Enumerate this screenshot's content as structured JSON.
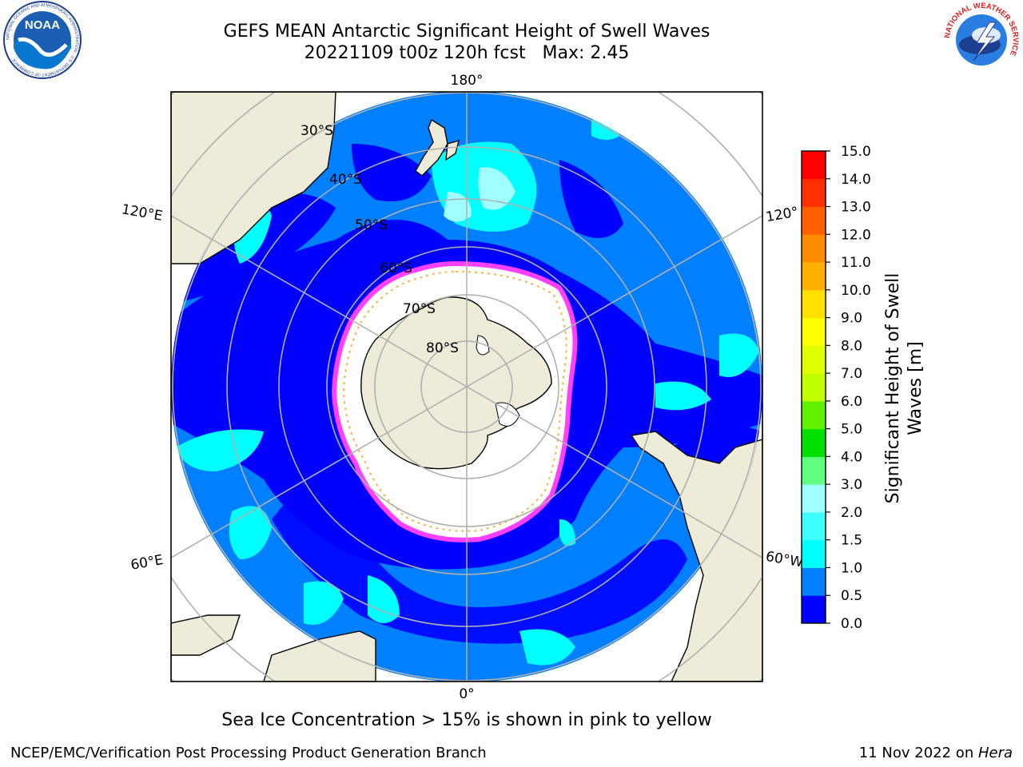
{
  "title": {
    "line1": "GEFS MEAN Antarctic Significant Height of Swell Waves",
    "line2": "20221109 t00z 120h fcst   Max: 2.45"
  },
  "logos": {
    "left": {
      "name": "noaa-logo",
      "text": "NOAA",
      "ring_text": "NATIONAL OCEANIC AND ATMOSPHERIC ADMINISTRATION · U.S. DEPARTMENT OF COMMERCE"
    },
    "right": {
      "name": "nws-logo",
      "ring_text": "NATIONAL WEATHER SERVICE"
    }
  },
  "map": {
    "projection": "south-polar-stereographic",
    "lon_labels": {
      "top": "180°",
      "bottom": "0°",
      "left_upper": "120°E",
      "left_lower": "60°E",
      "right_upper": "120°",
      "right_lower": "60°W"
    },
    "lat_labels": [
      "30°S",
      "40°S",
      "50°S",
      "60°S",
      "70°S",
      "80°S"
    ],
    "colors": {
      "land": "#eeebd9",
      "ice": "#ffffff",
      "ice_edge": "#ff40ff",
      "ice_edge_inner": "#f4b446",
      "grid": "#b0b0b0",
      "coast": "#000000"
    }
  },
  "colorbar": {
    "label_line1": "Significant Height of Swell",
    "label_line2": "Waves [m]",
    "ticks": [
      "0.0",
      "0.5",
      "1.0",
      "1.5",
      "2.0",
      "3.0",
      "4.0",
      "5.0",
      "6.0",
      "7.0",
      "8.0",
      "9.0",
      "10.0",
      "11.0",
      "12.0",
      "13.0",
      "14.0",
      "15.0"
    ],
    "bins": [
      {
        "from": 0.0,
        "to": 0.5,
        "color": "#0000ff"
      },
      {
        "from": 0.5,
        "to": 1.0,
        "color": "#0080ff"
      },
      {
        "from": 1.0,
        "to": 1.5,
        "color": "#00ffff"
      },
      {
        "from": 1.5,
        "to": 2.0,
        "color": "#40ffff"
      },
      {
        "from": 2.0,
        "to": 3.0,
        "color": "#a0ffff"
      },
      {
        "from": 3.0,
        "to": 4.0,
        "color": "#60ff80"
      },
      {
        "from": 4.0,
        "to": 5.0,
        "color": "#00e000"
      },
      {
        "from": 5.0,
        "to": 6.0,
        "color": "#60f000"
      },
      {
        "from": 6.0,
        "to": 7.0,
        "color": "#c0ff00"
      },
      {
        "from": 7.0,
        "to": 8.0,
        "color": "#e0ff00"
      },
      {
        "from": 8.0,
        "to": 9.0,
        "color": "#ffff00"
      },
      {
        "from": 9.0,
        "to": 10.0,
        "color": "#ffe000"
      },
      {
        "from": 10.0,
        "to": 11.0,
        "color": "#ffb000"
      },
      {
        "from": 11.0,
        "to": 12.0,
        "color": "#ff8c00"
      },
      {
        "from": 12.0,
        "to": 13.0,
        "color": "#ff6000"
      },
      {
        "from": 13.0,
        "to": 14.0,
        "color": "#ff3000"
      },
      {
        "from": 14.0,
        "to": 15.0,
        "color": "#ff0000"
      }
    ]
  },
  "caption": "Sea Ice Concentration > 15% is shown in pink to yellow",
  "footer": {
    "left": "NCEP/EMC/Verification Post Processing Product Generation Branch",
    "right_date": "11 Nov 2022 on ",
    "right_host": "Hera"
  }
}
